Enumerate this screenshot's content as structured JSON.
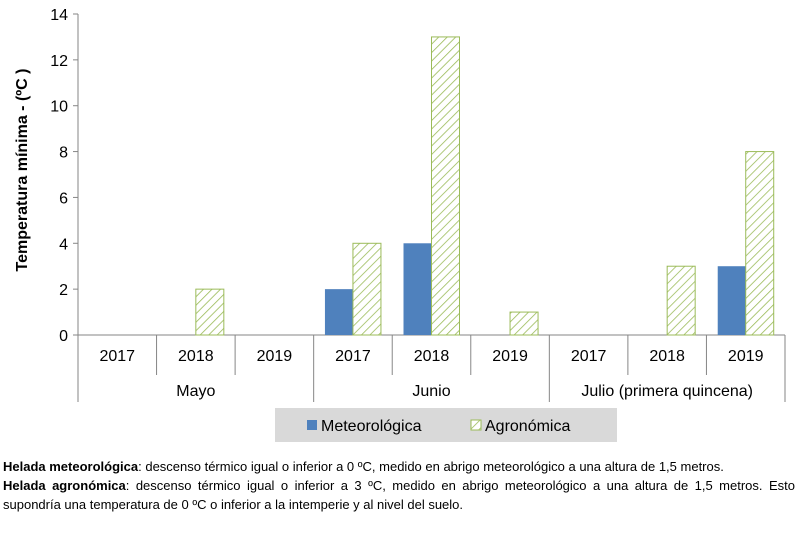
{
  "chart_data": {
    "type": "bar",
    "ylabel": "Temperatura mínima - (ºC )",
    "ylim": [
      0,
      14
    ],
    "yticks": [
      0,
      2,
      4,
      6,
      8,
      10,
      12,
      14
    ],
    "grid": false,
    "legend_position": "bottom",
    "groups": [
      {
        "label": "Mayo",
        "years": [
          "2017",
          "2018",
          "2019"
        ]
      },
      {
        "label": "Junio",
        "years": [
          "2017",
          "2018",
          "2019"
        ]
      },
      {
        "label": "Julio (primera quincena)",
        "years": [
          "2017",
          "2018",
          "2019"
        ]
      }
    ],
    "categories": [
      "2017",
      "2018",
      "2019",
      "2017",
      "2018",
      "2019",
      "2017",
      "2018",
      "2019"
    ],
    "series": [
      {
        "name": "Meteorológica",
        "color": "#4f81bd",
        "pattern": "solid",
        "values": [
          0,
          0,
          0,
          2,
          4,
          0,
          0,
          0,
          3
        ]
      },
      {
        "name": "Agronómica",
        "color": "#9bbb59",
        "pattern": "diagonal-hatch",
        "values": [
          0,
          2,
          0,
          4,
          13,
          1,
          0,
          3,
          8
        ]
      }
    ]
  },
  "notes": [
    {
      "term": "Helada meteorológica",
      "text": ": descenso térmico igual o inferior a 0 ºC, medido en abrigo meteorológico a una altura de 1,5 metros."
    },
    {
      "term": "Helada agronómica",
      "text": ": descenso térmico igual o inferior a 3 ºC, medido en abrigo meteorológico a una altura de 1,5 metros. Esto supondría una temperatura de 0 ºC o inferior a la intemperie y al nivel del suelo."
    }
  ]
}
